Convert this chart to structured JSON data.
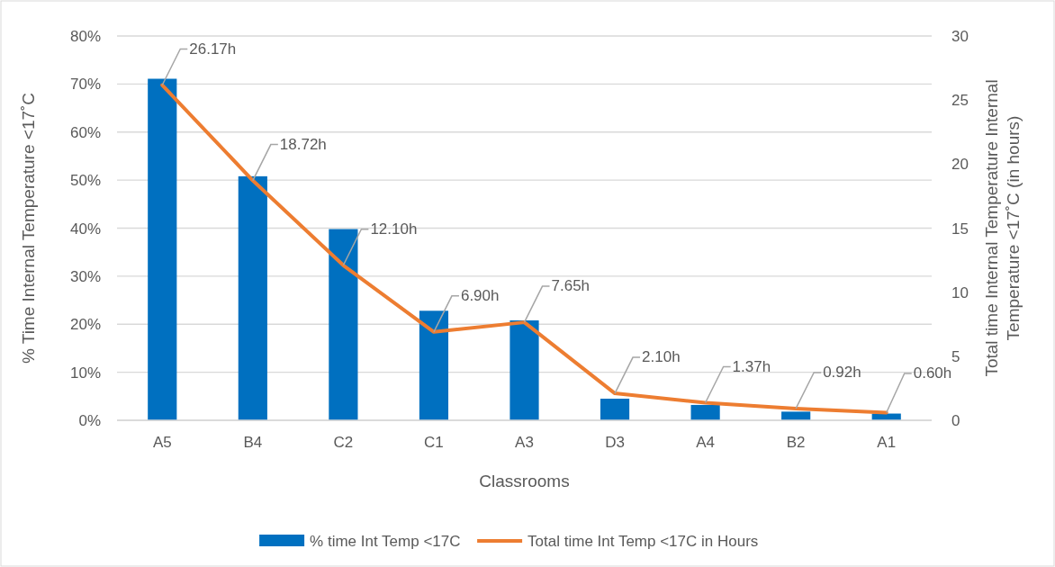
{
  "chart_data": {
    "type": "bar",
    "xlabel": "Classrooms",
    "ylabel": "% Time Internal Temperature <17˚C",
    "y2label": "Total time Internal Temperature Internal Temperature <17˚C (in hours)",
    "categories": [
      "A5",
      "B4",
      "C2",
      "C1",
      "A3",
      "D3",
      "A4",
      "B2",
      "A1"
    ],
    "series": [
      {
        "name": "% time Int Temp <17C",
        "color": "#0070c0",
        "values": [
          71.1,
          50.8,
          39.8,
          22.8,
          20.8,
          4.5,
          3.2,
          1.8,
          1.4
        ]
      },
      {
        "name": "Total time Int Temp <17C in Hours",
        "type": "line",
        "axis": "y2",
        "color": "#ed7d31",
        "values": [
          26.17,
          18.72,
          12.1,
          6.9,
          7.65,
          2.1,
          1.37,
          0.92,
          0.6
        ],
        "value_labels": [
          "26.17h",
          "18.72h",
          "12.10h",
          "6.90h",
          "7.65h",
          "2.10h",
          "1.37h",
          "0.92h",
          "0.60h"
        ]
      }
    ],
    "ylim": [
      0,
      80
    ],
    "yticks": [
      {
        "value": 0,
        "label": "0%"
      },
      {
        "value": 10,
        "label": "10%"
      },
      {
        "value": 20,
        "label": "20%"
      },
      {
        "value": 30,
        "label": "30%"
      },
      {
        "value": 40,
        "label": "40%"
      },
      {
        "value": 50,
        "label": "50%"
      },
      {
        "value": 60,
        "label": "60%"
      },
      {
        "value": 70,
        "label": "70%"
      },
      {
        "value": 80,
        "label": "80%"
      }
    ],
    "y2lim": [
      0,
      30
    ],
    "y2ticks": [
      0,
      5,
      10,
      15,
      20,
      25,
      30
    ],
    "grid": "y",
    "legend": "bottom",
    "line_style": "solid",
    "marker": "none"
  }
}
